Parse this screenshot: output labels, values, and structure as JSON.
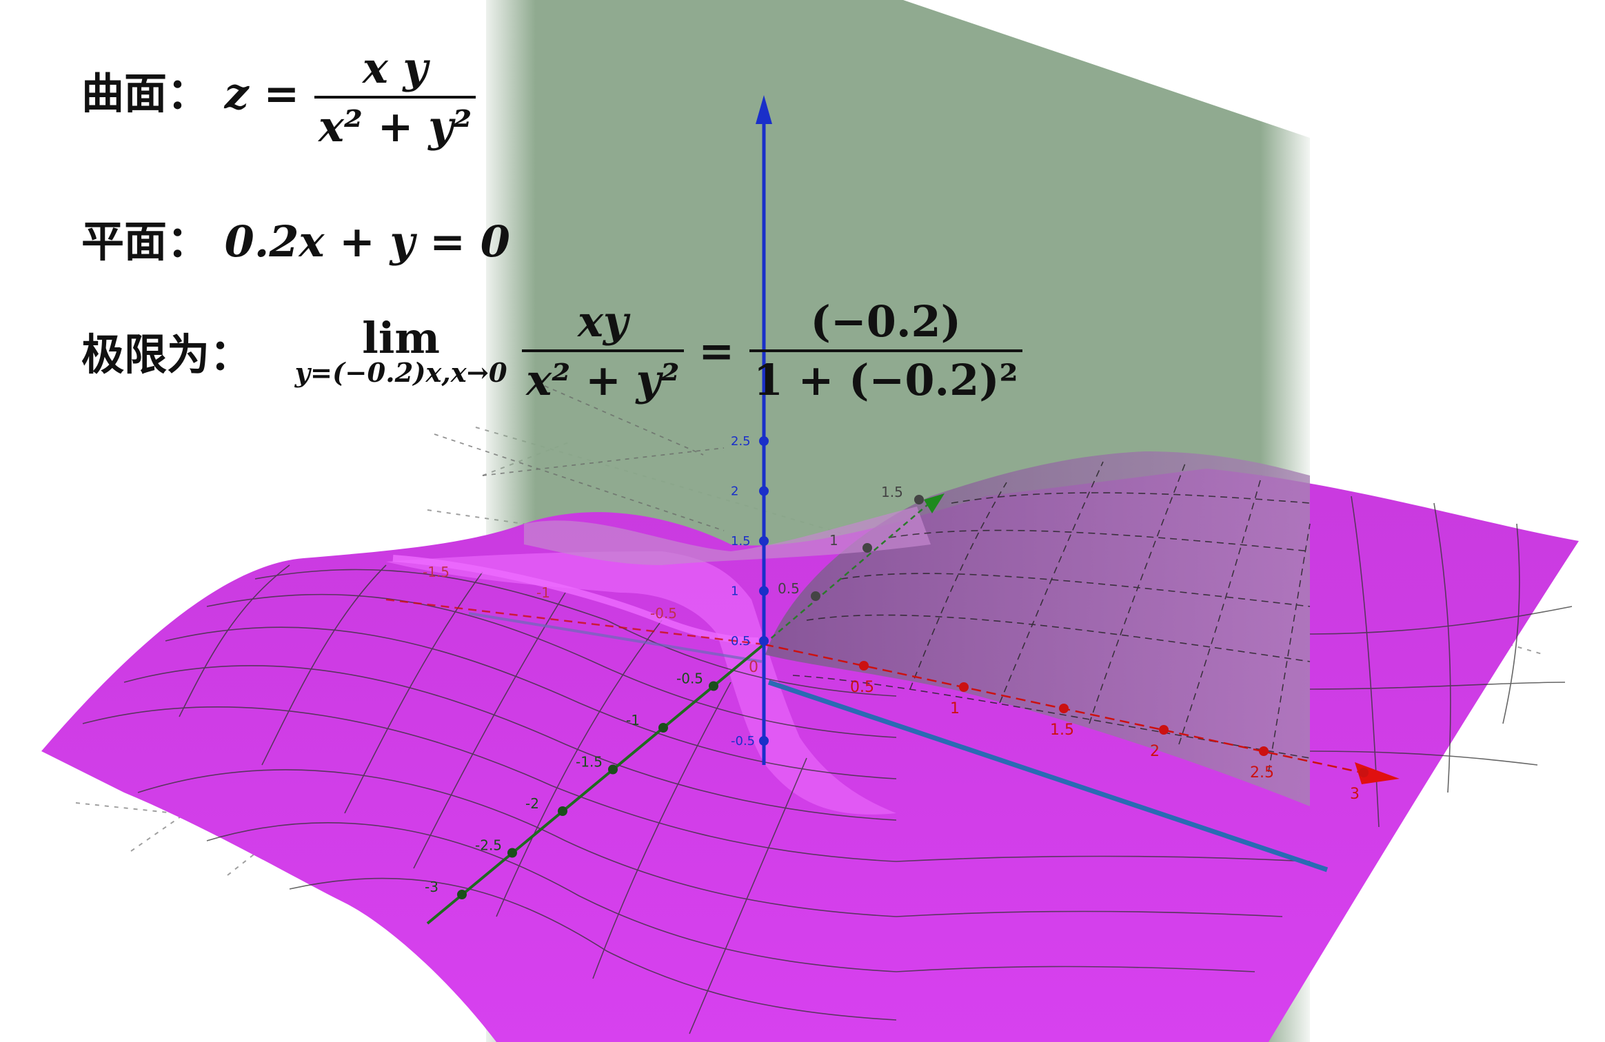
{
  "formulas": {
    "surface": {
      "label": "曲面：",
      "lhs": "z =",
      "numerator": "x y",
      "denominator": "x² + y²"
    },
    "plane": {
      "label": "平面：",
      "equation": "0.2x + y = 0"
    },
    "limit": {
      "label": "极限为：",
      "lim": "lim",
      "lim_sub": "y=(−0.2)x,x→0",
      "numerator": "xy",
      "denominator": "x² + y²",
      "equals": "=",
      "rhs_numerator": "(−0.2)",
      "rhs_denominator": "1 + (−0.2)²"
    }
  },
  "axes": {
    "z_ticks": [
      "2.5",
      "2",
      "1.5",
      "1",
      "0.5",
      "-0.5"
    ],
    "x_ticks": [
      "0.5",
      "1",
      "1.5",
      "2",
      "2.5",
      "3"
    ],
    "x_neg_ticks": [
      "-0.5",
      "-1",
      "-1.5"
    ],
    "y_ticks": [
      "0.5",
      "1",
      "1.5"
    ],
    "y_neg_ticks": [
      "-0.5",
      "-1",
      "-1.5",
      "-2",
      "-2.5",
      "-3"
    ],
    "origin_label": "0"
  },
  "colors": {
    "surface": "#d23ee8",
    "surface_dark": "#b02ac8",
    "plane": "#8aa68a",
    "z_axis": "#1a2fc9",
    "x_axis": "#cc1111",
    "y_axis": "#1f6b1f",
    "intersection_line": "#2a6bb3"
  }
}
